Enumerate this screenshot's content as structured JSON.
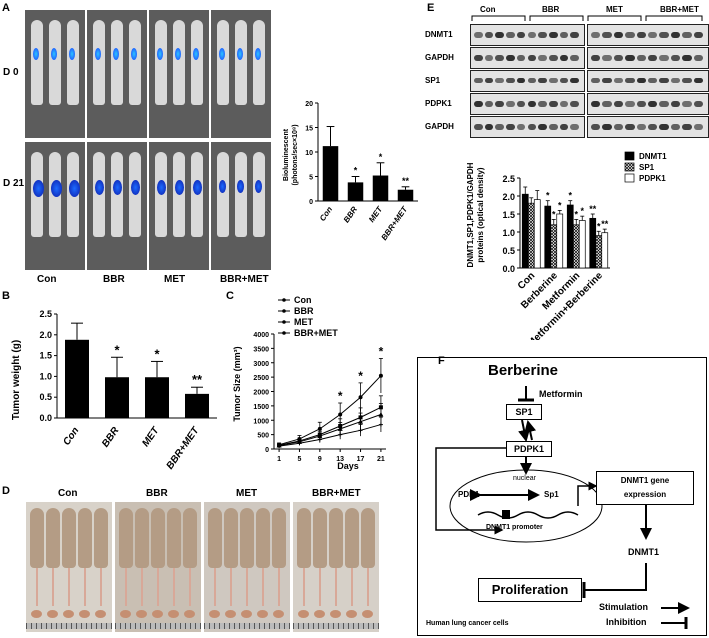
{
  "panels": {
    "A": "A",
    "B": "B",
    "C": "C",
    "D": "D",
    "E": "E",
    "F": "F"
  },
  "panelA": {
    "rows": [
      "D 0",
      "D 21"
    ],
    "groups": [
      "Con",
      "BBR",
      "MET",
      "BBR+MET"
    ],
    "chart_data": {
      "type": "bar",
      "categories": [
        "Con",
        "BBR",
        "MET",
        "BBR+MET"
      ],
      "values": [
        11.2,
        3.8,
        5.2,
        2.3
      ],
      "errors": [
        4.0,
        1.2,
        2.6,
        0.6
      ],
      "significance": [
        "",
        "*",
        "*",
        "**"
      ],
      "ylabel_line1": "Bioluminescent",
      "ylabel_line2": "(photons/sec×10⁸)",
      "ylim": [
        0,
        20
      ],
      "yticks": [
        0,
        5,
        10,
        15,
        20
      ]
    }
  },
  "panelB": {
    "chart_data": {
      "type": "bar",
      "categories": [
        "Con",
        "BBR",
        "MET",
        "BBR+MET"
      ],
      "values": [
        1.88,
        0.98,
        0.98,
        0.58
      ],
      "errors": [
        0.4,
        0.48,
        0.38,
        0.16
      ],
      "significance": [
        "",
        "*",
        "*",
        "**"
      ],
      "ylabel": "Tumor weight (g)",
      "ylim": [
        0,
        2.5
      ],
      "yticks": [
        "0.0",
        "0.5",
        "1.0",
        "1.5",
        "2.0",
        "2.5"
      ]
    }
  },
  "panelC": {
    "chart_data": {
      "type": "line",
      "x": [
        1,
        5,
        9,
        13,
        17,
        21
      ],
      "xticks": [
        "1",
        "5",
        "9",
        "13",
        "17",
        "21"
      ],
      "series": [
        {
          "name": "Con",
          "values": [
            150,
            350,
            700,
            1200,
            1800,
            2550
          ],
          "errors": [
            60,
            120,
            230,
            400,
            500,
            600
          ]
        },
        {
          "name": "BBR",
          "values": [
            130,
            280,
            500,
            800,
            1100,
            1450
          ],
          "errors": [
            50,
            100,
            160,
            250,
            330,
            400
          ]
        },
        {
          "name": "MET",
          "values": [
            120,
            250,
            450,
            700,
            950,
            1200
          ],
          "errors": [
            50,
            90,
            150,
            220,
            300,
            380
          ]
        },
        {
          "name": "BBR+MET",
          "values": [
            100,
            200,
            330,
            500,
            650,
            850
          ],
          "errors": [
            40,
            70,
            110,
            160,
            200,
            260
          ]
        }
      ],
      "significance": {
        "13": "*",
        "17": "*",
        "21": "*"
      },
      "xlabel": "Days",
      "ylabel": "Tumor Size (mm³)",
      "ylim": [
        0,
        4000
      ],
      "yticks": [
        "0",
        "500",
        "1000",
        "1500",
        "2000",
        "2500",
        "3000",
        "3500",
        "4000"
      ]
    }
  },
  "panelD": {
    "groups": [
      "Con",
      "BBR",
      "MET",
      "BBR+MET"
    ]
  },
  "panelE": {
    "blot_groups": [
      "Con",
      "BBR",
      "MET",
      "BBR+MET"
    ],
    "blot_rows": [
      "DNMT1",
      "GAPDH",
      "SP1",
      "PDPK1",
      "GAPDH"
    ],
    "chart_data": {
      "type": "bar",
      "categories": [
        "Con",
        "Berberine",
        "Metformin",
        "Metformin+Berberine"
      ],
      "series": [
        {
          "name": "DNMT1",
          "values": [
            2.05,
            1.72,
            1.75,
            1.38
          ],
          "errors": [
            0.2,
            0.15,
            0.12,
            0.12
          ],
          "significance": [
            "",
            "*",
            "*",
            "**"
          ]
        },
        {
          "name": "SP1",
          "values": [
            1.8,
            1.2,
            1.2,
            0.9
          ],
          "errors": [
            0.15,
            0.15,
            0.15,
            0.12
          ],
          "significance": [
            "",
            "*",
            "*",
            "*"
          ]
        },
        {
          "name": "PDPK1",
          "values": [
            1.9,
            1.5,
            1.32,
            0.98
          ],
          "errors": [
            0.25,
            0.1,
            0.12,
            0.1
          ],
          "significance": [
            "",
            "*",
            "*",
            "**"
          ]
        }
      ],
      "ylabel_line1": "DNMT1,SP1,PDPK1/GAPDH",
      "ylabel_line2": "proteins (optical density)",
      "ylim": [
        0,
        2.5
      ],
      "yticks": [
        "0.0",
        "0.5",
        "1.0",
        "1.5",
        "2.0",
        "2.5"
      ]
    }
  },
  "panelF": {
    "berberine": "Berberine",
    "metformin": "Metformin",
    "sp1": "SP1",
    "pdpk1": "PDPK1",
    "nuclear": "nuclear",
    "pdk1": "PDK1",
    "sp1_nuc": "Sp1",
    "promoter": "DNMT1 promoter",
    "gene_line1": "DNMT1 gene",
    "gene_line2": "expression",
    "dnmt1": "DNMT1",
    "proliferation": "Proliferation",
    "stimulation": "Stimulation",
    "inhibition": "Inhibition",
    "cells": "Human lung cancer cells"
  }
}
